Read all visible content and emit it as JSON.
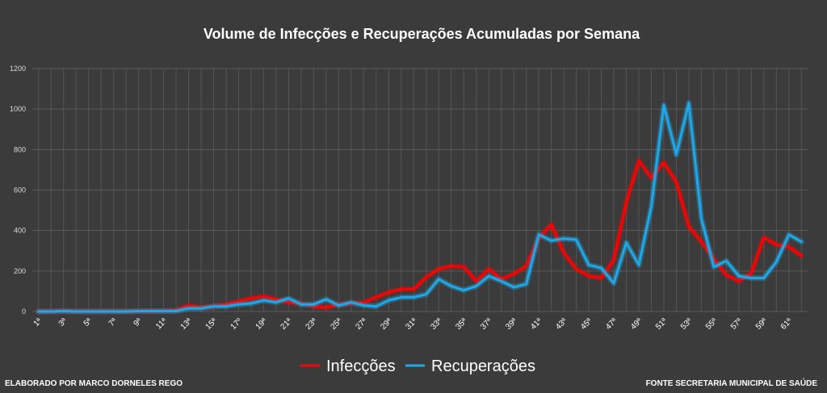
{
  "chart_data": {
    "type": "line",
    "title": "Volume de Infecções e Recuperações Acumuladas por Semana",
    "xlabel": "",
    "ylabel": "",
    "ylim": [
      0,
      1200
    ],
    "yticks": [
      0,
      200,
      400,
      600,
      800,
      1000,
      1200
    ],
    "grid": true,
    "legend_position": "bottom",
    "x": [
      "1ª",
      "2ª",
      "3ª",
      "4ª",
      "5ª",
      "6ª",
      "7ª",
      "8ª",
      "9ª",
      "10ª",
      "11ª",
      "12ª",
      "13ª",
      "14ª",
      "15ª",
      "16ª",
      "17º",
      "18ª",
      "19ª",
      "20ª",
      "21ª",
      "22ª",
      "23ª",
      "24ª",
      "25ª",
      "26ª",
      "27ª",
      "28ª",
      "29ª",
      "30ª",
      "31ª",
      "32ª",
      "33ª",
      "34ª",
      "35ª",
      "36ª",
      "37ª",
      "38ª",
      "39ª",
      "40ª",
      "41ª",
      "42ª",
      "43ª",
      "44ª",
      "45ª",
      "46ª",
      "47ª",
      "48ª",
      "49ª",
      "50ª",
      "51ª",
      "52ª",
      "53ª",
      "54ª",
      "55ª",
      "56ª",
      "57ª",
      "58ª",
      "59ª",
      "60ª",
      "61ª",
      "62ª"
    ],
    "tick_labels": [
      "1ª",
      "3ª",
      "5ª",
      "7ª",
      "9ª",
      "11ª",
      "13ª",
      "15ª",
      "17º",
      "19ª",
      "21ª",
      "23ª",
      "25ª",
      "27ª",
      "29ª",
      "31ª",
      "33ª",
      "35ª",
      "37ª",
      "39ª",
      "41ª",
      "43ª",
      "45ª",
      "47ª",
      "49ª",
      "51ª",
      "53ª",
      "55ª",
      "57ª",
      "59ª",
      "61ª"
    ],
    "series": [
      {
        "name": "Infecções",
        "color": "#ff0000",
        "values": [
          0,
          0,
          2,
          0,
          1,
          0,
          1,
          0,
          1,
          1,
          2,
          5,
          30,
          20,
          25,
          35,
          50,
          65,
          75,
          60,
          45,
          40,
          25,
          20,
          35,
          40,
          45,
          70,
          95,
          110,
          110,
          170,
          210,
          225,
          220,
          150,
          210,
          160,
          185,
          225,
          360,
          430,
          290,
          210,
          175,
          165,
          255,
          540,
          745,
          660,
          735,
          640,
          420,
          345,
          260,
          180,
          150,
          190,
          365,
          330,
          320,
          275
        ]
      },
      {
        "name": "Recuperações",
        "color": "#1fa8e8",
        "values": [
          0,
          0,
          2,
          0,
          0,
          0,
          0,
          0,
          2,
          2,
          2,
          2,
          15,
          15,
          25,
          25,
          35,
          40,
          55,
          45,
          65,
          35,
          35,
          60,
          30,
          45,
          30,
          25,
          55,
          70,
          70,
          85,
          160,
          125,
          105,
          125,
          175,
          150,
          120,
          135,
          380,
          350,
          360,
          355,
          230,
          215,
          140,
          340,
          230,
          520,
          1020,
          775,
          1030,
          460,
          220,
          250,
          175,
          165,
          165,
          245,
          380,
          345
        ]
      }
    ]
  },
  "footer": {
    "left": "ELABORADO POR MARCO DORNELES REGO",
    "right": "FONTE SECRETARIA MUNICIPAL DE SAÚDE"
  }
}
